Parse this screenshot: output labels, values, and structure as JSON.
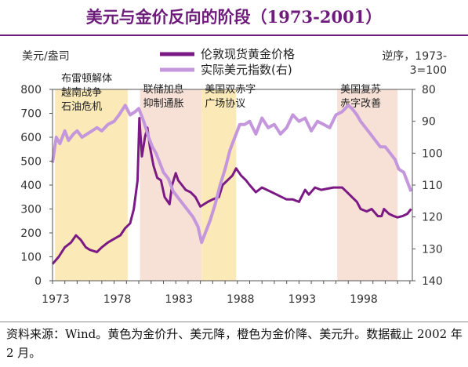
{
  "title": "美元与金价反向的阶段（1973-2001）",
  "footnote": "资料来源：Wind。黄色为金价升、美元降，橙色为金价降、美元升。数据截止 2002 年 2 月。",
  "chart_data": {
    "type": "line",
    "left_axis_label": "美元/盎司",
    "right_axis_label": "逆序，1973-3=100",
    "left_ylim": [
      0,
      800
    ],
    "right_ylim": [
      140,
      80
    ],
    "right_axis_inverted": true,
    "left_ticks": [
      0,
      100,
      200,
      300,
      400,
      500,
      600,
      700,
      800
    ],
    "right_ticks": [
      80,
      90,
      100,
      110,
      120,
      130,
      140
    ],
    "x_ticks": [
      1973,
      1978,
      1983,
      1988,
      1993,
      1998
    ],
    "xlim": [
      1973,
      2002.2
    ],
    "grid": false,
    "legend_position": "top-center",
    "shaded_periods": [
      {
        "start": 1973.2,
        "end": 1979.1,
        "color": "#fbeab8",
        "label": "布雷顿解体 越南战争 石油危机"
      },
      {
        "start": 1980.1,
        "end": 1985.1,
        "color": "#f7e1d6",
        "label": "联储加息 抑制通胀"
      },
      {
        "start": 1985.1,
        "end": 1987.9,
        "color": "#fbeab8",
        "label": "美国双赤字 广场协议"
      },
      {
        "start": 1996.1,
        "end": 2001.0,
        "color": "#f7e1d6",
        "label": "美国复苏 赤字改善"
      }
    ],
    "series": [
      {
        "name": "伦敦现货黄金价格",
        "axis": "left",
        "color": "#7b1a85",
        "x": [
          1973.0,
          1973.5,
          1974.0,
          1974.5,
          1974.9,
          1975.3,
          1975.7,
          1976.0,
          1976.6,
          1977.0,
          1977.5,
          1978.0,
          1978.5,
          1978.9,
          1979.3,
          1979.6,
          1979.9,
          1980.05,
          1980.25,
          1980.5,
          1980.7,
          1980.9,
          1981.2,
          1981.5,
          1981.8,
          1982.1,
          1982.5,
          1982.7,
          1983.0,
          1983.2,
          1983.5,
          1983.8,
          1984.2,
          1984.6,
          1985.0,
          1985.3,
          1985.6,
          1986.0,
          1986.5,
          1986.8,
          1987.2,
          1987.6,
          1987.9,
          1988.3,
          1988.7,
          1989.0,
          1989.5,
          1990.0,
          1990.4,
          1990.8,
          1991.2,
          1991.6,
          1992.0,
          1992.5,
          1993.0,
          1993.5,
          1993.8,
          1994.3,
          1994.8,
          1995.3,
          1995.8,
          1996.1,
          1996.5,
          1996.9,
          1997.3,
          1997.7,
          1998.0,
          1998.5,
          1998.9,
          1999.4,
          1999.7,
          1999.9,
          2000.3,
          2000.7,
          2001.0,
          2001.4,
          2001.8,
          2002.1
        ],
        "y": [
          70,
          100,
          140,
          160,
          190,
          170,
          140,
          130,
          120,
          140,
          160,
          175,
          190,
          220,
          240,
          300,
          420,
          680,
          520,
          600,
          640,
          560,
          480,
          430,
          420,
          350,
          320,
          400,
          450,
          420,
          400,
          380,
          370,
          350,
          310,
          320,
          330,
          340,
          350,
          400,
          420,
          440,
          470,
          440,
          420,
          400,
          370,
          390,
          380,
          370,
          360,
          350,
          340,
          340,
          330,
          380,
          360,
          390,
          380,
          385,
          390,
          390,
          390,
          370,
          350,
          330,
          300,
          290,
          300,
          270,
          270,
          300,
          280,
          270,
          265,
          270,
          280,
          300
        ]
      },
      {
        "name": "实际美元指数(右)",
        "axis": "right",
        "color": "#c497dc",
        "x": [
          1973.0,
          1973.3,
          1973.6,
          1974.0,
          1974.3,
          1974.7,
          1975.0,
          1975.4,
          1975.8,
          1976.2,
          1976.6,
          1977.0,
          1977.5,
          1978.0,
          1978.4,
          1978.9,
          1979.3,
          1979.7,
          1980.0,
          1980.4,
          1980.8,
          1981.1,
          1981.4,
          1981.7,
          1982.0,
          1982.4,
          1982.8,
          1983.2,
          1983.6,
          1984.0,
          1984.4,
          1984.8,
          1985.1,
          1985.4,
          1985.8,
          1986.2,
          1986.6,
          1987.0,
          1987.4,
          1987.8,
          1988.2,
          1988.6,
          1989.0,
          1989.5,
          1990.0,
          1990.5,
          1991.0,
          1991.5,
          1992.0,
          1992.5,
          1993.0,
          1993.5,
          1994.0,
          1994.5,
          1995.0,
          1995.5,
          1996.0,
          1996.5,
          1997.0,
          1997.3,
          1997.7,
          1998.0,
          1998.4,
          1998.8,
          1999.2,
          1999.6,
          2000.0,
          2000.4,
          2000.8,
          2001.1,
          2001.5,
          2001.8,
          2002.1
        ],
        "y": [
          103,
          95,
          97,
          93,
          96,
          94,
          93,
          95,
          94,
          93,
          92,
          93,
          91,
          90,
          88,
          85,
          88,
          87,
          86,
          90,
          95,
          98,
          100,
          103,
          106,
          108,
          112,
          114,
          116,
          118,
          120,
          123,
          128,
          125,
          121,
          116,
          110,
          105,
          99,
          95,
          91,
          91,
          90,
          94,
          89,
          92,
          91,
          94,
          92,
          88,
          90,
          89,
          93,
          90,
          91,
          92,
          88,
          87,
          85,
          86,
          88,
          90,
          92,
          94,
          96,
          98,
          98,
          100,
          102,
          105,
          106,
          109,
          112
        ]
      }
    ]
  }
}
